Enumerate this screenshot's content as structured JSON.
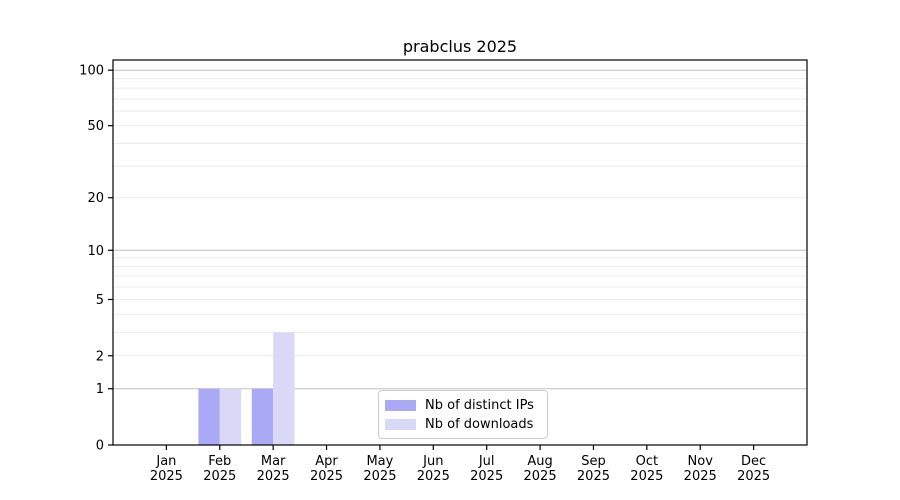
{
  "chart_data": {
    "type": "bar",
    "title": "prabclus 2025",
    "categories": [
      "Jan",
      "Feb",
      "Mar",
      "Apr",
      "May",
      "Jun",
      "Jul",
      "Aug",
      "Sep",
      "Oct",
      "Nov",
      "Dec"
    ],
    "tick_year": "2025",
    "series": [
      {
        "name": "Nb of distinct IPs",
        "color": "#a9a9f6",
        "values": [
          0,
          1,
          1,
          0,
          0,
          0,
          0,
          0,
          0,
          0,
          0,
          0
        ]
      },
      {
        "name": "Nb of downloads",
        "color": "#d9d9f7",
        "values": [
          0,
          1,
          3,
          0,
          0,
          0,
          0,
          0,
          0,
          0,
          0,
          0
        ]
      }
    ],
    "y_axis": {
      "scale": "log10(1+y)",
      "tick_values": [
        0,
        1,
        2,
        5,
        10,
        20,
        50,
        100
      ],
      "range_max": 113,
      "minor_gridlines": [
        2,
        3,
        4,
        5,
        6,
        7,
        8,
        9,
        20,
        30,
        40,
        50,
        60,
        70,
        80,
        90
      ],
      "major_gridlines": [
        1,
        10,
        100
      ]
    },
    "legend": {
      "position": "lower center"
    },
    "colors": {
      "grid_minor": "#ebebeb",
      "grid_major": "#c0c0c0",
      "axis": "#000000",
      "text": "#000000",
      "background": "#ffffff"
    }
  }
}
